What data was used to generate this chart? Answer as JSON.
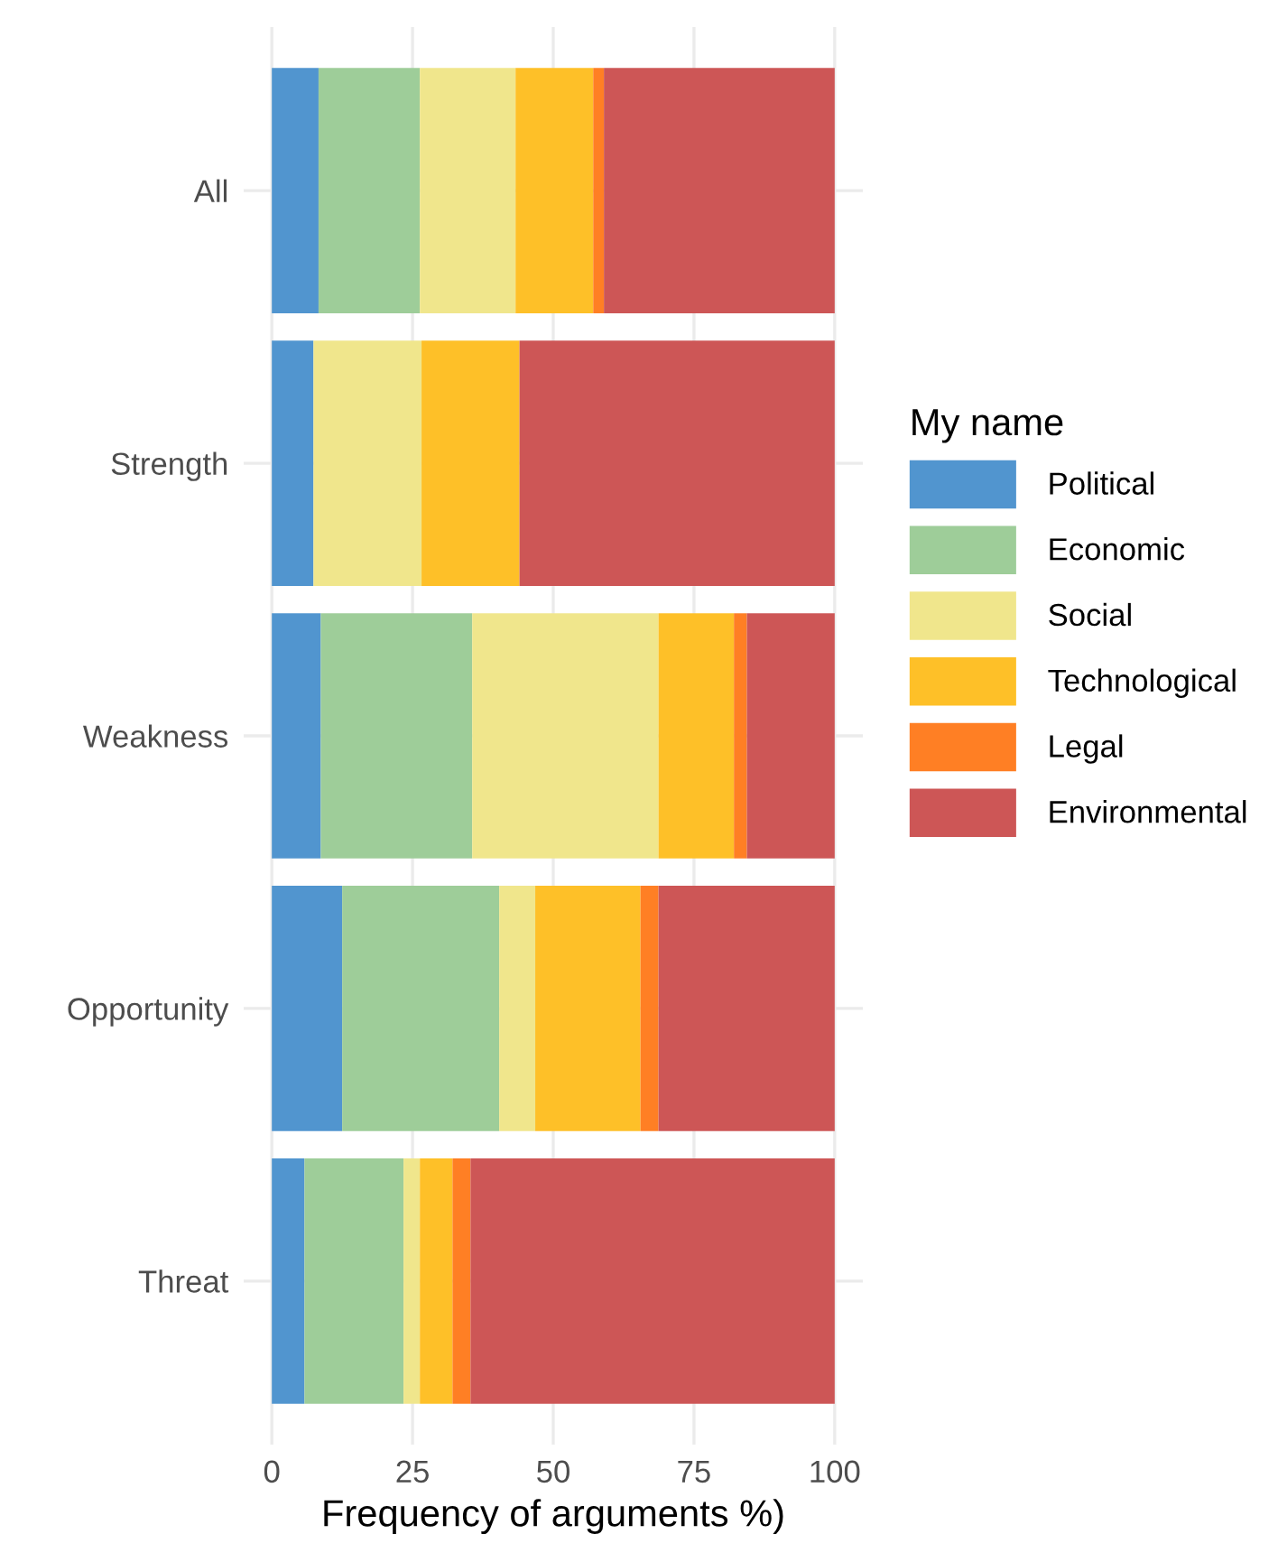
{
  "chart_data": {
    "type": "bar",
    "orientation": "horizontal",
    "stacked": true,
    "categories": [
      "All",
      "Strength",
      "Weakness",
      "Opportunity",
      "Threat"
    ],
    "series": [
      {
        "name": "Political",
        "color": "#5195cf",
        "values": [
          8.3,
          7.4,
          8.7,
          12.5,
          5.8
        ]
      },
      {
        "name": "Economic",
        "color": "#9ecd99",
        "values": [
          18.0,
          0,
          26.9,
          27.9,
          17.6
        ]
      },
      {
        "name": "Social",
        "color": "#f0e68c",
        "values": [
          17.0,
          19.2,
          33.1,
          6.4,
          2.9
        ]
      },
      {
        "name": "Technological",
        "color": "#fec028",
        "values": [
          13.8,
          17.4,
          13.4,
          18.7,
          5.8
        ]
      },
      {
        "name": "Legal",
        "color": "#ff7f24",
        "values": [
          1.9,
          0,
          2.3,
          3.2,
          3.2
        ]
      },
      {
        "name": "Environmental",
        "color": "#cd5656",
        "values": [
          41.0,
          56.0,
          15.6,
          31.3,
          64.7
        ]
      }
    ],
    "xlabel": "Frequency of arguments %)",
    "legend_title": "My name",
    "legend": "right",
    "xlim": [
      -5,
      105
    ],
    "xticks": [
      0,
      25,
      50,
      75,
      100
    ],
    "grid": true
  }
}
